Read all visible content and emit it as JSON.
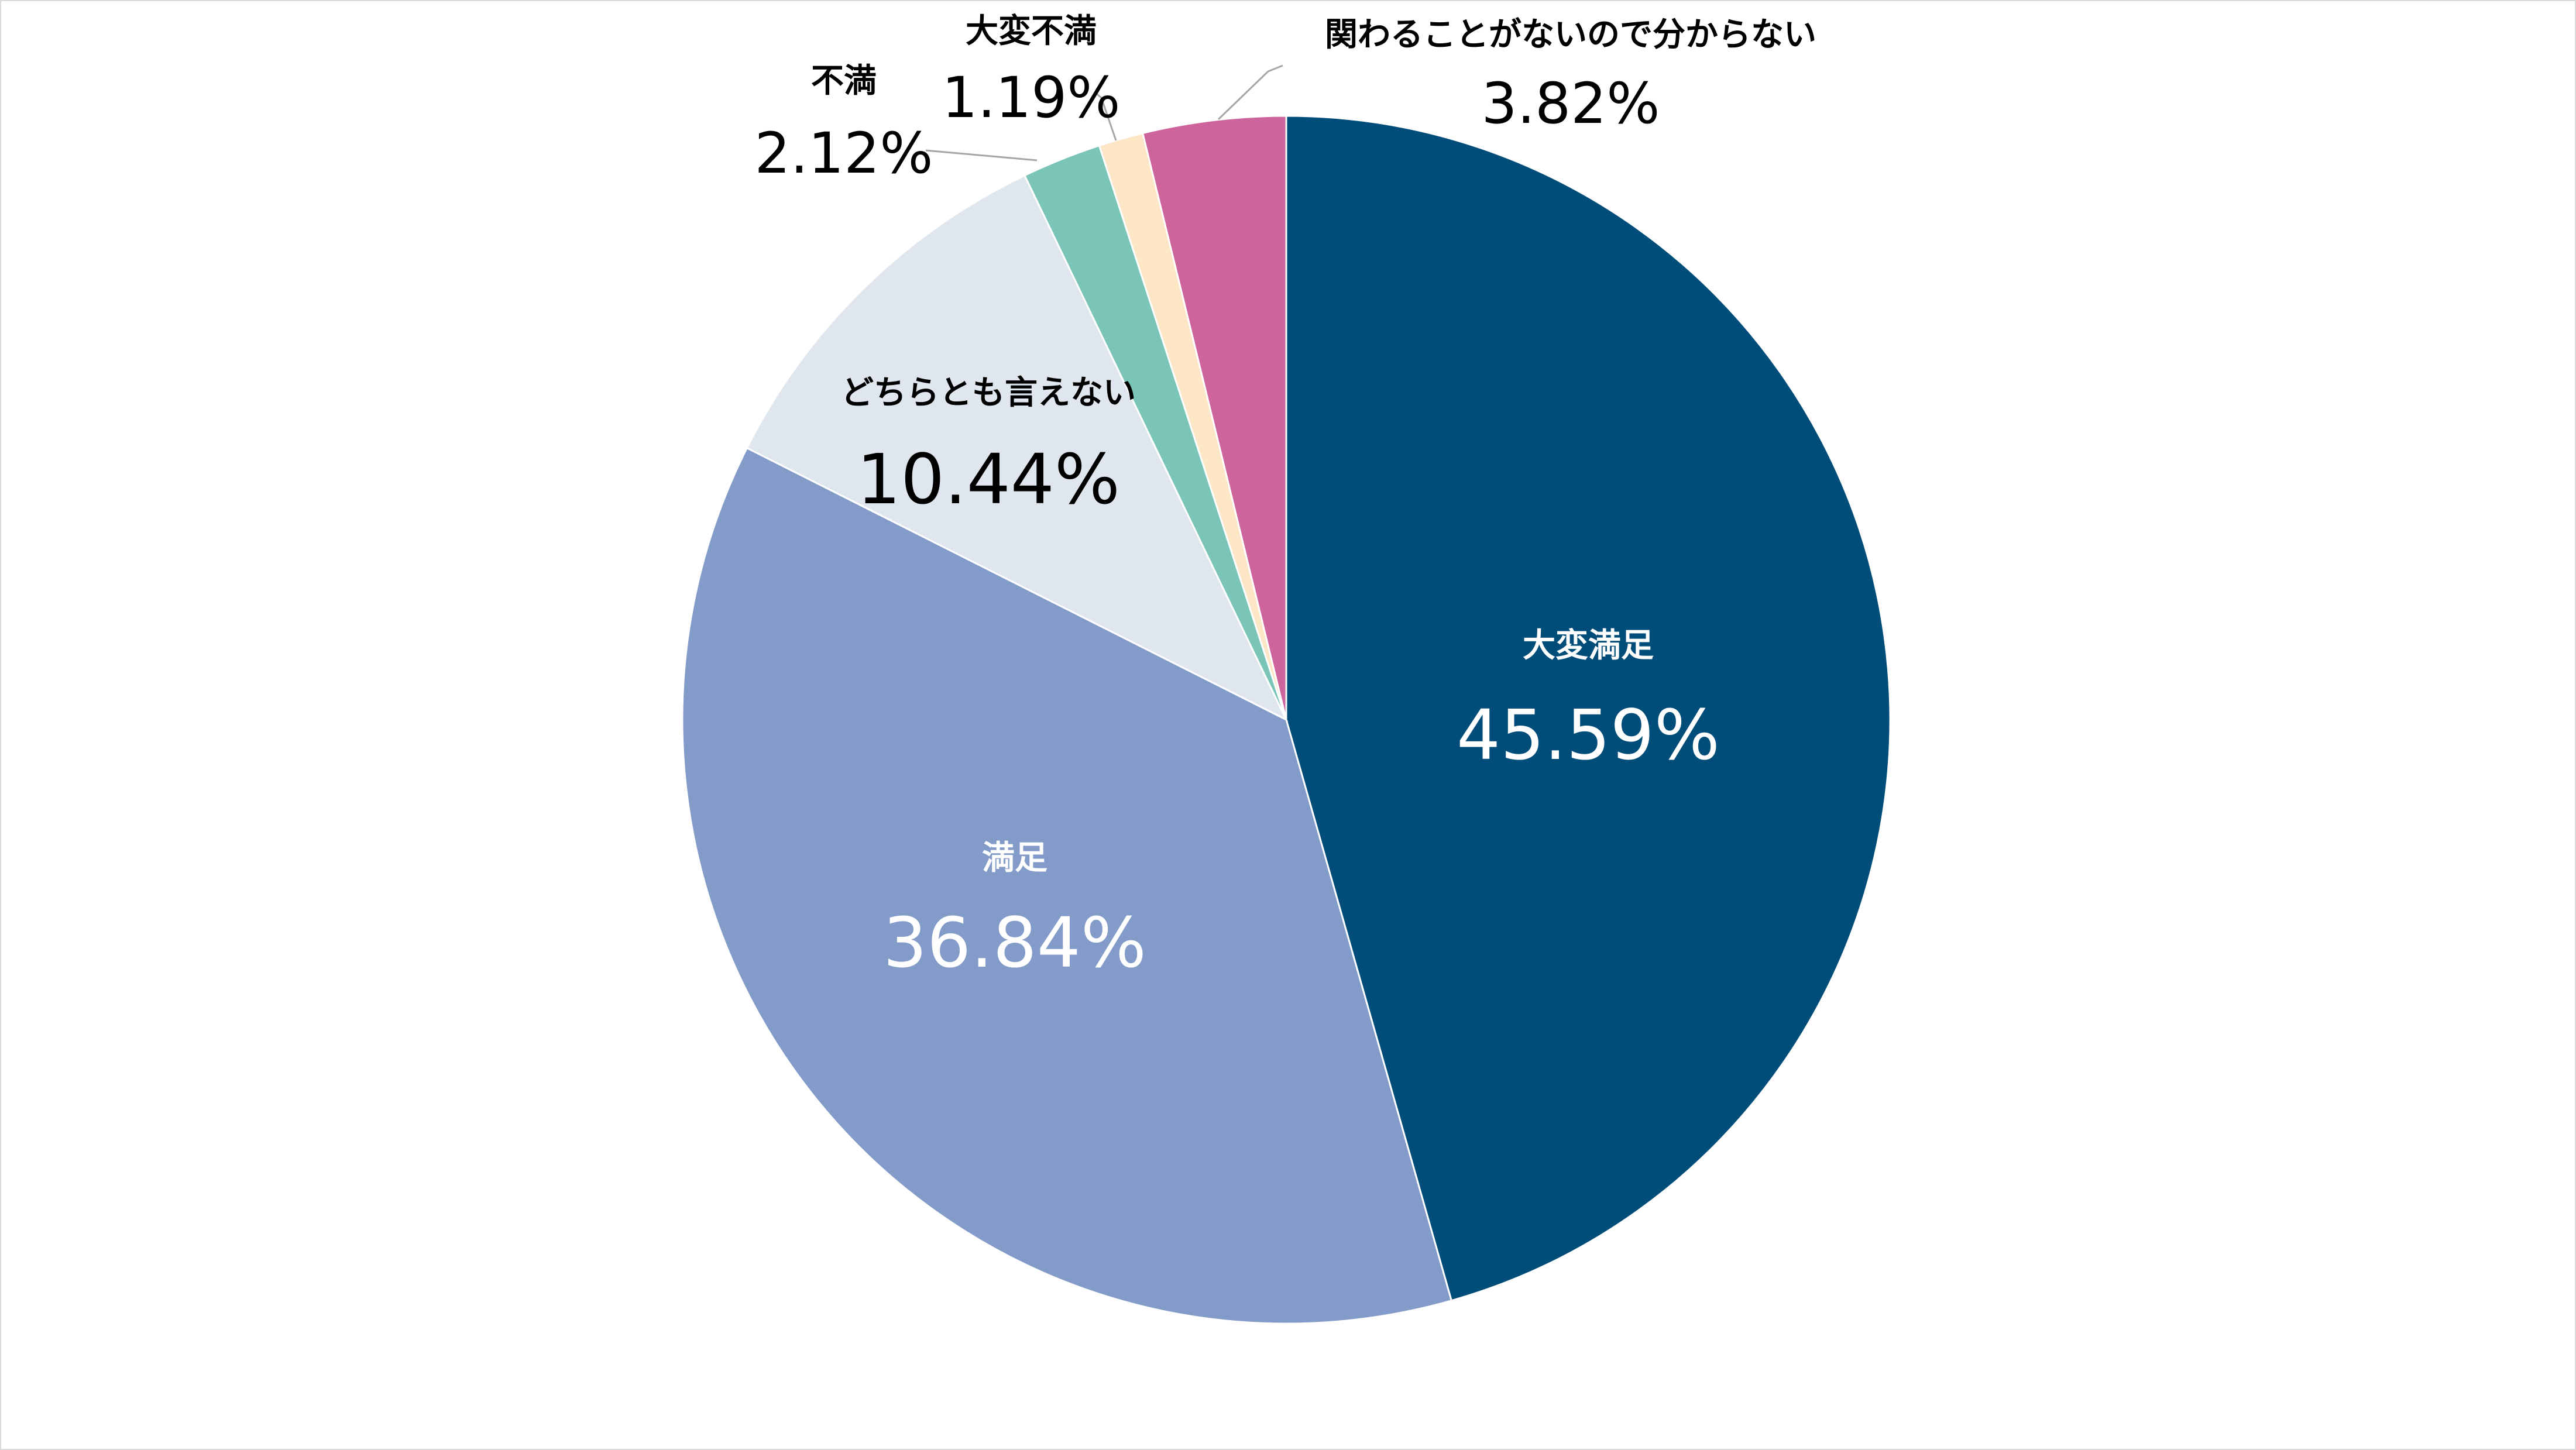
{
  "chart_data": {
    "type": "pie",
    "start": "12 o'clock",
    "direction": "clockwise",
    "legend": "none",
    "slices": [
      {
        "label": "大変満足",
        "value": 45.59,
        "display": "45.59%",
        "color": "#004d79",
        "label_color": "#ffffff"
      },
      {
        "label": "満足",
        "value": 36.84,
        "display": "36.84%",
        "color": "#839bc8",
        "label_color": "#ffffff"
      },
      {
        "label": "どちらとも言えない",
        "value": 10.44,
        "display": "10.44%",
        "color": "#dfe6ee",
        "label_color": "#000000"
      },
      {
        "label": "不満",
        "value": 2.12,
        "display": "2.12%",
        "color": "#7ac5b8",
        "label_color": "#000000"
      },
      {
        "label": "大変不満",
        "value": 1.19,
        "display": "1.19%",
        "color": "#fde6c6",
        "label_color": "#000000"
      },
      {
        "label": "関わることがないので分からない",
        "value": 3.82,
        "display": "3.82%",
        "color": "#cd659c",
        "label_color": "#000000"
      }
    ]
  }
}
